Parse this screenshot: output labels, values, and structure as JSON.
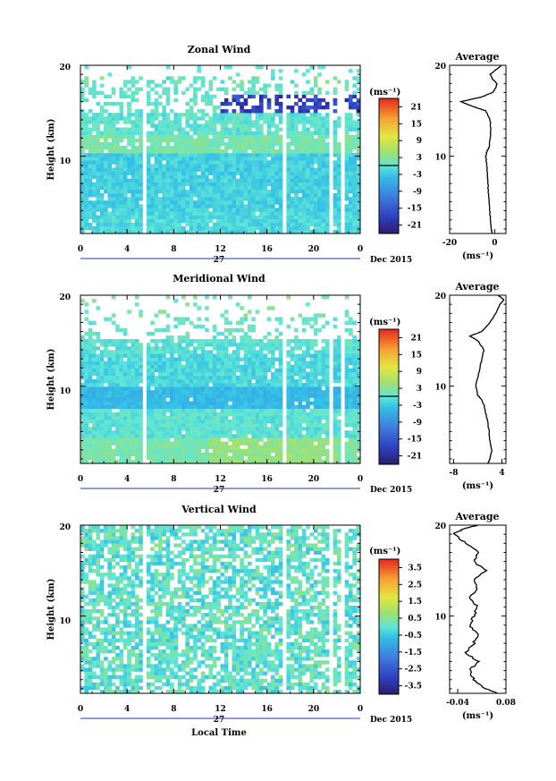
{
  "figure": {
    "colorbar_unit": "(ms⁻¹)",
    "avg_unit": "(ms⁻¹)",
    "x_tick_labels": [
      "0",
      "4",
      "8",
      "12",
      "16",
      "20",
      "0"
    ],
    "date_label": "27",
    "month_label": "Dec 2015",
    "xlabel": "Local Time"
  },
  "chart_data": [
    {
      "type": "heatmap",
      "title": "Zonal Wind",
      "ylabel": "Height (km)",
      "xlabel": "",
      "xlim": [
        0,
        24
      ],
      "ylim": [
        1.5,
        20
      ],
      "y_tick_labels": [
        "10",
        "20"
      ],
      "colorbar": {
        "unit": "(ms⁻¹)",
        "ticks": [
          "21",
          "15",
          "9",
          "3",
          "-3",
          "-9",
          "-15",
          "-21"
        ],
        "range": [
          -24,
          24
        ],
        "contour_at": 0
      },
      "data_gaps_hours": [
        [
          5.4,
          5.8
        ],
        [
          17.4,
          17.8
        ],
        [
          21.4,
          21.8
        ],
        [
          22.3,
          22.6
        ]
      ],
      "pattern": "weak easterly (-3 to 0 ms-1) below 10 km; cyan/green bands near 11-13 km; strong easterly (down to -21 ms-1) near 15-17 km after 12 LT",
      "average_profile": {
        "title": "Average",
        "xlim": [
          -20,
          5
        ],
        "x_tick_labels": [
          "-20",
          "0"
        ],
        "y_tick_labels": [
          "10",
          "20"
        ],
        "xlabel": "(ms⁻¹)",
        "height_km": [
          1.5,
          2,
          3,
          4,
          5,
          6,
          7,
          8,
          9,
          10,
          10.5,
          11,
          12,
          13,
          14,
          15,
          15.5,
          16,
          16.5,
          17,
          17.5,
          18,
          18.5,
          19,
          19.5,
          20
        ],
        "value": [
          -1,
          -1.5,
          -1.8,
          -2.2,
          -2.5,
          -2.8,
          -3,
          -3.2,
          -3.5,
          -4,
          -3.5,
          -2.5,
          -2,
          -1.8,
          -2,
          -4,
          -10,
          -15,
          -6,
          -1,
          0.5,
          1,
          -1,
          -2,
          0.5,
          3
        ]
      }
    },
    {
      "type": "heatmap",
      "title": "Meridional Wind",
      "ylabel": "Height (km)",
      "xlabel": "",
      "xlim": [
        0,
        24
      ],
      "ylim": [
        1.5,
        20
      ],
      "y_tick_labels": [
        "10",
        "20"
      ],
      "colorbar": {
        "unit": "(ms⁻¹)",
        "ticks": [
          "21",
          "15",
          "9",
          "3",
          "-3",
          "-9",
          "-15",
          "-21"
        ],
        "range": [
          -24,
          24
        ],
        "contour_at": 0
      },
      "data_gaps_hours": [
        [
          5.4,
          5.8
        ],
        [
          17.4,
          17.8
        ],
        [
          21.4,
          21.8
        ],
        [
          22.3,
          22.6
        ]
      ],
      "pattern": "mostly -3 to 3 ms-1; green (3-6 ms-1) near 2-4 km in afternoon; blue (-6 ms-1) band near 8-9 km",
      "average_profile": {
        "title": "Average",
        "xlim": [
          -9,
          5
        ],
        "x_tick_labels": [
          "-8",
          "4"
        ],
        "y_tick_labels": [
          "10",
          "20"
        ],
        "xlabel": "(ms⁻¹)",
        "height_km": [
          1.5,
          2,
          3,
          4,
          5,
          6,
          7,
          8,
          8.5,
          9,
          10,
          11,
          12,
          13,
          14,
          15,
          15.5,
          16,
          17,
          18,
          19,
          19.5,
          20
        ],
        "value": [
          0.5,
          1,
          1.5,
          1,
          0.8,
          0.5,
          0,
          -0.5,
          -1,
          -2,
          -2.5,
          -2,
          -1.5,
          -1,
          -0.5,
          -2,
          -4,
          -1,
          1,
          2.5,
          3.5,
          4.5,
          3
        ]
      }
    },
    {
      "type": "heatmap",
      "title": "Vertical Wind",
      "ylabel": "Height (km)",
      "xlabel": "Local Time",
      "xlim": [
        0,
        24
      ],
      "ylim": [
        1.5,
        20
      ],
      "y_tick_labels": [
        "10",
        "20"
      ],
      "colorbar": {
        "unit": "(ms⁻¹)",
        "ticks": [
          "3.5",
          "2.5",
          "1.5",
          "0.5",
          "-0.5",
          "-1.5",
          "-2.5",
          "-3.5"
        ],
        "range": [
          -4,
          4
        ]
      },
      "data_gaps_hours": [
        [
          5.4,
          5.8
        ],
        [
          17.4,
          17.8
        ],
        [
          21.4,
          21.8
        ],
        [
          22.3,
          22.6
        ]
      ],
      "pattern": "near zero (-0.5 to 0.5 ms-1) with scattered missing bins",
      "average_profile": {
        "title": "Average",
        "xlim": [
          -0.06,
          0.08
        ],
        "x_tick_labels": [
          "-0.04",
          "0.08"
        ],
        "y_tick_labels": [
          "10",
          "20"
        ],
        "xlabel": "(ms⁻¹)",
        "height_km": [
          1.5,
          2,
          3,
          4,
          5,
          6,
          7,
          8,
          9,
          10,
          11,
          12,
          13,
          14,
          15,
          16,
          17,
          18,
          19,
          19.5,
          20
        ],
        "value": [
          0.06,
          0.03,
          0.0,
          -0.01,
          0.01,
          -0.02,
          0.0,
          0.01,
          -0.01,
          0.0,
          0.01,
          -0.01,
          0.01,
          0.0,
          0.03,
          0.0,
          0.01,
          -0.02,
          -0.05,
          -0.03,
          0.01
        ]
      }
    }
  ]
}
